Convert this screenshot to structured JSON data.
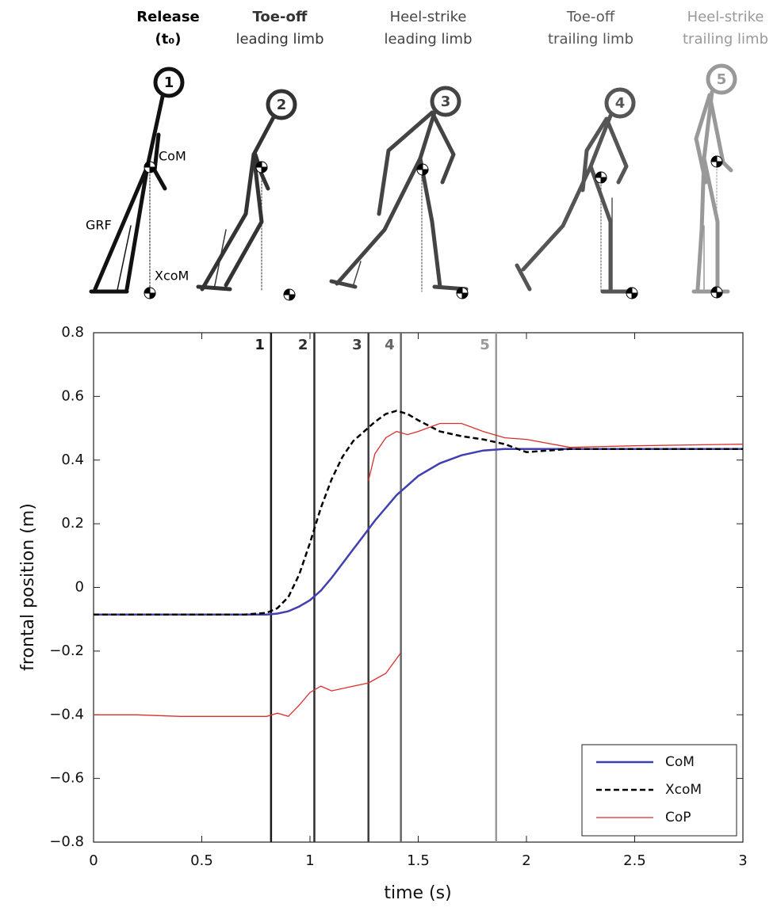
{
  "chart_data": {
    "type": "line",
    "x_label": "time (s)",
    "y_label": "frontal position (m)",
    "xlim": [
      0,
      3
    ],
    "xticks": [
      0,
      0.5,
      1,
      1.5,
      2,
      2.5,
      3
    ],
    "ylim": [
      -0.8,
      0.8
    ],
    "yticks": [
      {
        "value": -0.8,
        "label": "−0.8"
      },
      {
        "value": -0.6,
        "label": "−0.6"
      },
      {
        "value": -0.4,
        "label": "−0.4"
      },
      {
        "value": -0.2,
        "label": "−0.2"
      },
      0,
      0.2,
      0.4,
      0.6,
      0.8
    ],
    "x": [
      0,
      0.2,
      0.4,
      0.6,
      0.7,
      0.8,
      0.85,
      0.9,
      0.95,
      1.0,
      1.05,
      1.1,
      1.15,
      1.2,
      1.25,
      1.3,
      1.35,
      1.4,
      1.45,
      1.5,
      1.6,
      1.7,
      1.8,
      1.9,
      2.0,
      2.2,
      2.5,
      3.0
    ],
    "series": [
      {
        "name": "CoM",
        "color": "#3f3fb0",
        "line_style": "solid",
        "line_width": 2.5,
        "values": [
          -0.085,
          -0.085,
          -0.085,
          -0.085,
          -0.085,
          -0.085,
          -0.082,
          -0.075,
          -0.06,
          -0.04,
          -0.01,
          0.03,
          0.075,
          0.12,
          0.165,
          0.21,
          0.25,
          0.29,
          0.32,
          0.35,
          0.39,
          0.415,
          0.43,
          0.435,
          0.435,
          0.435,
          0.435,
          0.435
        ]
      },
      {
        "name": "XcoM",
        "color": "#000000",
        "line_style": "dashed",
        "line_width": 2.5,
        "values": [
          -0.085,
          -0.085,
          -0.085,
          -0.085,
          -0.085,
          -0.08,
          -0.065,
          -0.03,
          0.04,
          0.14,
          0.25,
          0.34,
          0.41,
          0.46,
          0.49,
          0.52,
          0.545,
          0.555,
          0.545,
          0.525,
          0.49,
          0.475,
          0.465,
          0.45,
          0.425,
          0.435,
          0.435,
          0.435
        ]
      },
      {
        "name": "CoP",
        "color": "#d9302c",
        "line_style": "solid",
        "line_width": 1.3,
        "x": [
          0,
          0.2,
          0.4,
          0.6,
          0.8,
          0.85,
          0.9,
          0.95,
          1.0,
          1.05,
          1.1,
          1.2,
          1.27,
          1.35,
          1.42,
          null,
          1.27,
          1.3,
          1.35,
          1.4,
          1.45,
          1.5,
          1.6,
          1.7,
          1.8,
          1.9,
          2.0,
          2.2,
          2.5,
          3.0
        ],
        "values": [
          -0.4,
          -0.4,
          -0.405,
          -0.405,
          -0.405,
          -0.395,
          -0.405,
          -0.37,
          -0.33,
          -0.31,
          -0.325,
          -0.31,
          -0.3,
          -0.27,
          -0.205,
          null,
          0.335,
          0.42,
          0.47,
          0.49,
          0.48,
          0.49,
          0.515,
          0.515,
          0.49,
          0.47,
          0.465,
          0.44,
          0.445,
          0.45
        ]
      }
    ],
    "events": [
      {
        "label": "1",
        "x": 0.82,
        "color": "#1a1a1a"
      },
      {
        "label": "2",
        "x": 1.02,
        "color": "#2e2e2e"
      },
      {
        "label": "3",
        "x": 1.27,
        "color": "#3d3d3d"
      },
      {
        "label": "4",
        "x": 1.42,
        "color": "#666666"
      },
      {
        "label": "5",
        "x": 1.86,
        "color": "#999999"
      }
    ],
    "legend": "lower right"
  },
  "phases": [
    {
      "number": "1",
      "title": "Release",
      "subtitle": "(t₀)"
    },
    {
      "number": "2",
      "title": "Toe-off",
      "subtitle": "leading limb"
    },
    {
      "number": "3",
      "title": "Heel-strike",
      "subtitle": "leading limb"
    },
    {
      "number": "4",
      "title": "Toe-off",
      "subtitle": "trailing limb"
    },
    {
      "number": "5",
      "title": "Heel-strike",
      "subtitle": "trailing limb"
    }
  ],
  "figure_labels": {
    "com": "CoM",
    "grf": "GRF",
    "xcom": "XcoM"
  }
}
